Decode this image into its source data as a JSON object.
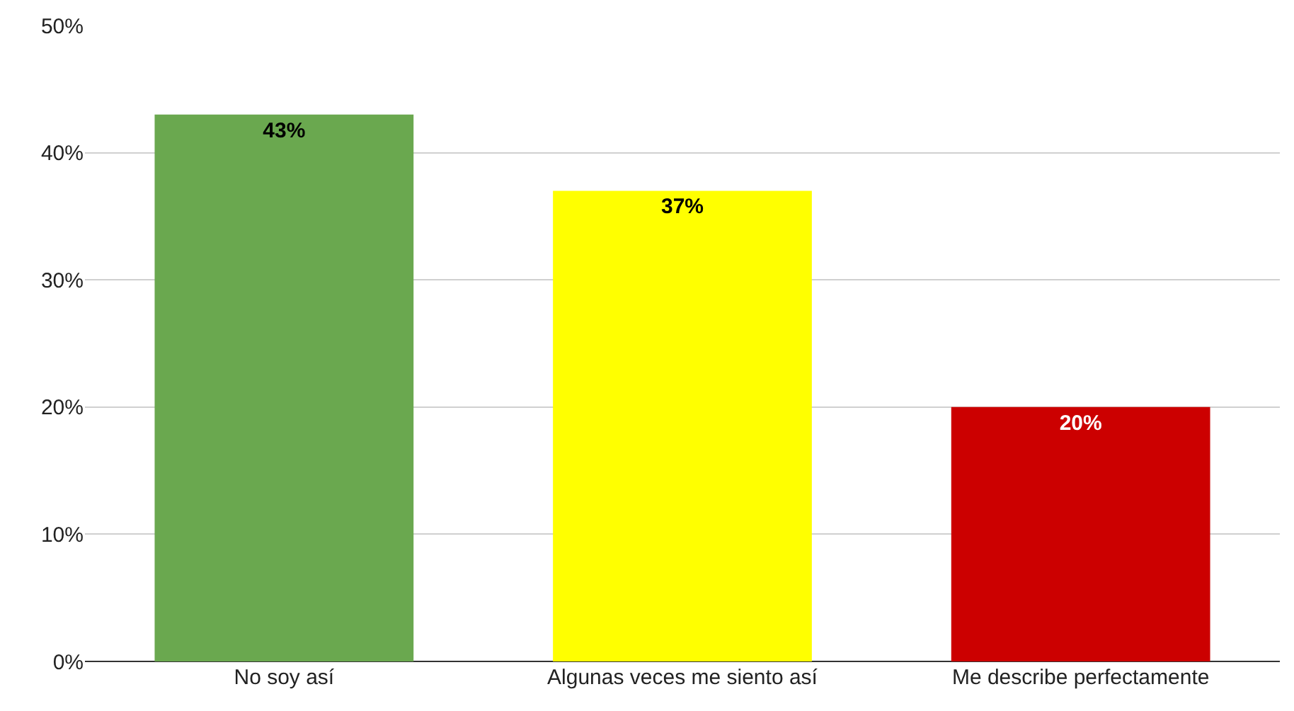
{
  "chart_data": {
    "type": "bar",
    "categories": [
      "No soy así",
      "Algunas veces me siento así",
      "Me describe perfectamente"
    ],
    "values": [
      43,
      37,
      20
    ],
    "colors": [
      "#6aa84f",
      "#ffff00",
      "#cc0000"
    ],
    "value_labels": [
      "43%",
      "37%",
      "20%"
    ],
    "ylim": [
      0,
      50
    ],
    "yticks": [
      {
        "value": 0,
        "label": "0%"
      },
      {
        "value": 10,
        "label": "10%"
      },
      {
        "value": 20,
        "label": "20%"
      },
      {
        "value": 30,
        "label": "30%"
      },
      {
        "value": 40,
        "label": "40%"
      },
      {
        "value": 50,
        "label": "50%"
      }
    ],
    "grid": "y"
  }
}
